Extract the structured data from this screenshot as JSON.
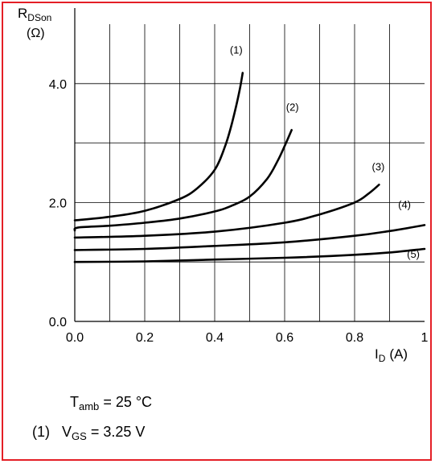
{
  "chart_data": {
    "type": "line",
    "ylabel_main": "R",
    "ylabel_sub": "DSon",
    "yunit": "(Ω)",
    "xlabel_main": "I",
    "xlabel_sub": "D",
    "xunit": "(A)",
    "xlim": [
      0,
      1.0
    ],
    "ylim": [
      0,
      5.0
    ],
    "xticks": [
      0,
      0.2,
      0.4,
      0.6,
      0.8,
      1.0
    ],
    "xtick_labels": [
      "0.0",
      "0.2",
      "0.4",
      "0.6",
      "0.8",
      "1"
    ],
    "yticks": [
      0,
      2,
      4
    ],
    "ytick_labels": [
      "0.0",
      "2.0",
      "4.0"
    ],
    "grid": true,
    "series": [
      {
        "name": "(1)",
        "x": [
          0,
          0.1,
          0.2,
          0.3,
          0.35,
          0.4,
          0.43,
          0.45,
          0.47,
          0.48
        ],
        "y": [
          1.7,
          1.76,
          1.86,
          2.06,
          2.24,
          2.55,
          2.95,
          3.35,
          3.85,
          4.18
        ]
      },
      {
        "name": "(2)",
        "x": [
          0,
          0.01,
          0.1,
          0.2,
          0.3,
          0.4,
          0.45,
          0.5,
          0.55,
          0.58,
          0.6,
          0.62
        ],
        "y": [
          1.53,
          1.58,
          1.61,
          1.66,
          1.73,
          1.85,
          1.95,
          2.1,
          2.4,
          2.7,
          2.95,
          3.22
        ]
      },
      {
        "name": "(3)",
        "x": [
          0,
          0.2,
          0.4,
          0.6,
          0.7,
          0.8,
          0.84,
          0.87
        ],
        "y": [
          1.41,
          1.44,
          1.51,
          1.66,
          1.8,
          2.0,
          2.15,
          2.3
        ]
      },
      {
        "name": "(4)",
        "x": [
          0,
          0.2,
          0.4,
          0.6,
          0.8,
          0.9,
          1.0
        ],
        "y": [
          1.2,
          1.22,
          1.27,
          1.33,
          1.44,
          1.52,
          1.62
        ]
      },
      {
        "name": "(5)",
        "x": [
          0,
          0.2,
          0.4,
          0.6,
          0.8,
          0.9,
          1.0
        ],
        "y": [
          1.0,
          1.01,
          1.04,
          1.07,
          1.12,
          1.16,
          1.22
        ]
      }
    ]
  },
  "notes": {
    "tamb_label": "T",
    "tamb_sub": "amb",
    "tamb_value": "= 25 °C",
    "vgs_index": "(1)",
    "vgs_label": "V",
    "vgs_sub": "GS",
    "vgs_value": "= 3.25 V"
  },
  "colors": {
    "border": "#e41f26",
    "curve": "#000000",
    "grid": "#000000"
  }
}
